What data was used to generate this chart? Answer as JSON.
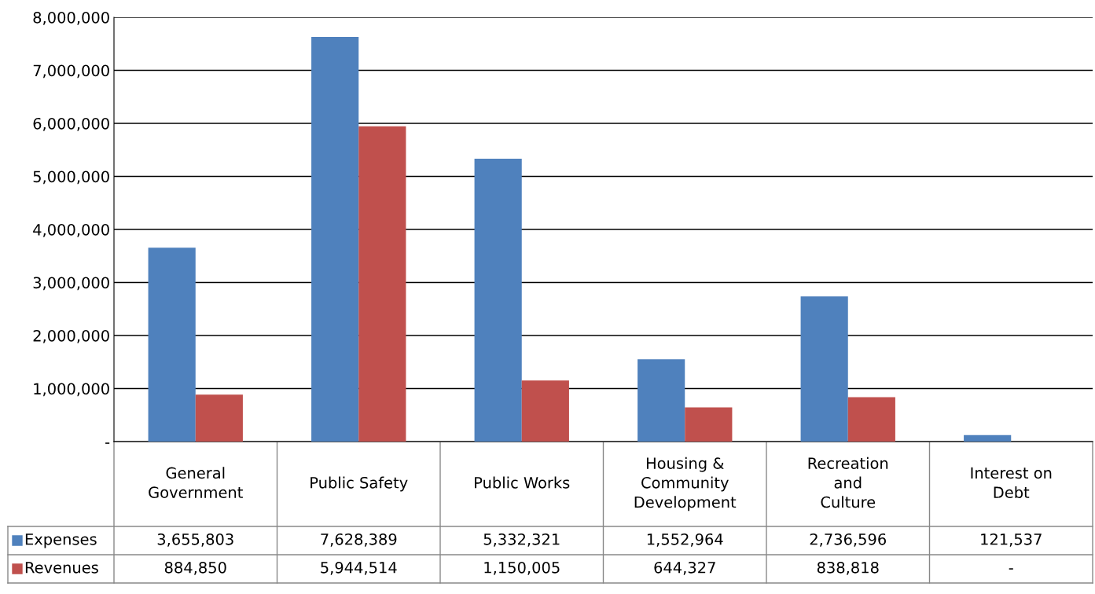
{
  "chart_data": {
    "type": "bar",
    "categories": [
      "General\nGovernment",
      "Public Safety",
      "Public Works",
      "Housing &\nCommunity\nDevelopment",
      "Recreation\nand\nCulture",
      "Interest on\nDebt"
    ],
    "series": [
      {
        "name": "Expenses",
        "color": "#4f81bd",
        "values": [
          3655803,
          7628389,
          5332321,
          1552964,
          2736596,
          121537
        ],
        "value_labels": [
          "3,655,803",
          "7,628,389",
          "5,332,321",
          "1,552,964",
          "2,736,596",
          "121,537"
        ]
      },
      {
        "name": "Revenues",
        "color": "#c0504d",
        "values": [
          884850,
          5944514,
          1150005,
          644327,
          838818,
          0
        ],
        "value_labels": [
          "884,850",
          "5,944,514",
          "1,150,005",
          "644,327",
          "838,818",
          "-"
        ]
      }
    ],
    "ylim": [
      0,
      8000000
    ],
    "yticks": [
      {
        "value": 0,
        "label": "-"
      },
      {
        "value": 1000000,
        "label": "1,000,000"
      },
      {
        "value": 2000000,
        "label": "2,000,000"
      },
      {
        "value": 3000000,
        "label": "3,000,000"
      },
      {
        "value": 4000000,
        "label": "4,000,000"
      },
      {
        "value": 5000000,
        "label": "5,000,000"
      },
      {
        "value": 6000000,
        "label": "6,000,000"
      },
      {
        "value": 7000000,
        "label": "7,000,000"
      },
      {
        "value": 8000000,
        "label": "8,000,000"
      }
    ],
    "grid": "y",
    "legend": "bottom"
  }
}
